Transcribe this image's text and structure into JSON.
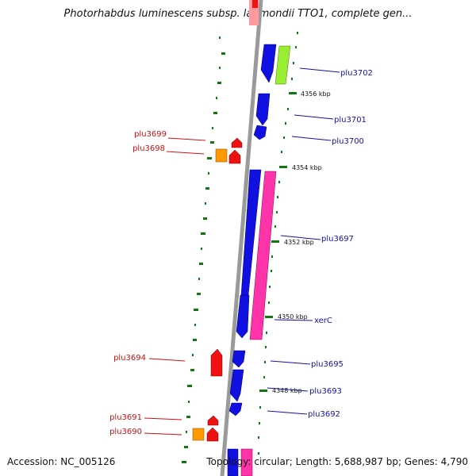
{
  "title": "Photorhabdus luminescens subsp. laumondii TTO1, complete gen...",
  "accession": "Accession: NC_005126",
  "topology": "Topology: circular; Length: 5,688,987 bp; Genes: 4,790",
  "colors": {
    "backbone": "#9a9a9a",
    "forward_gene": "#1010e0",
    "reverse_gene": "#ee1111",
    "pink_feature": "#ff33aa",
    "green_feature": "#99ee33",
    "orange_feature": "#ff9900",
    "tick": "#117711",
    "blue_label": "#1111aa",
    "red_label": "#cc1111"
  },
  "scale_labels": [
    "4356 kbp",
    "4354 kbp",
    "4352 kbp",
    "4350 kbp",
    "4348 kbp"
  ],
  "genes": [
    "plu3702",
    "plu3701",
    "plu3700",
    "plu3699",
    "plu3698",
    "plu3697",
    "xerC",
    "plu3694",
    "plu3695",
    "plu3693",
    "plu3692",
    "plu3691",
    "plu3690"
  ]
}
